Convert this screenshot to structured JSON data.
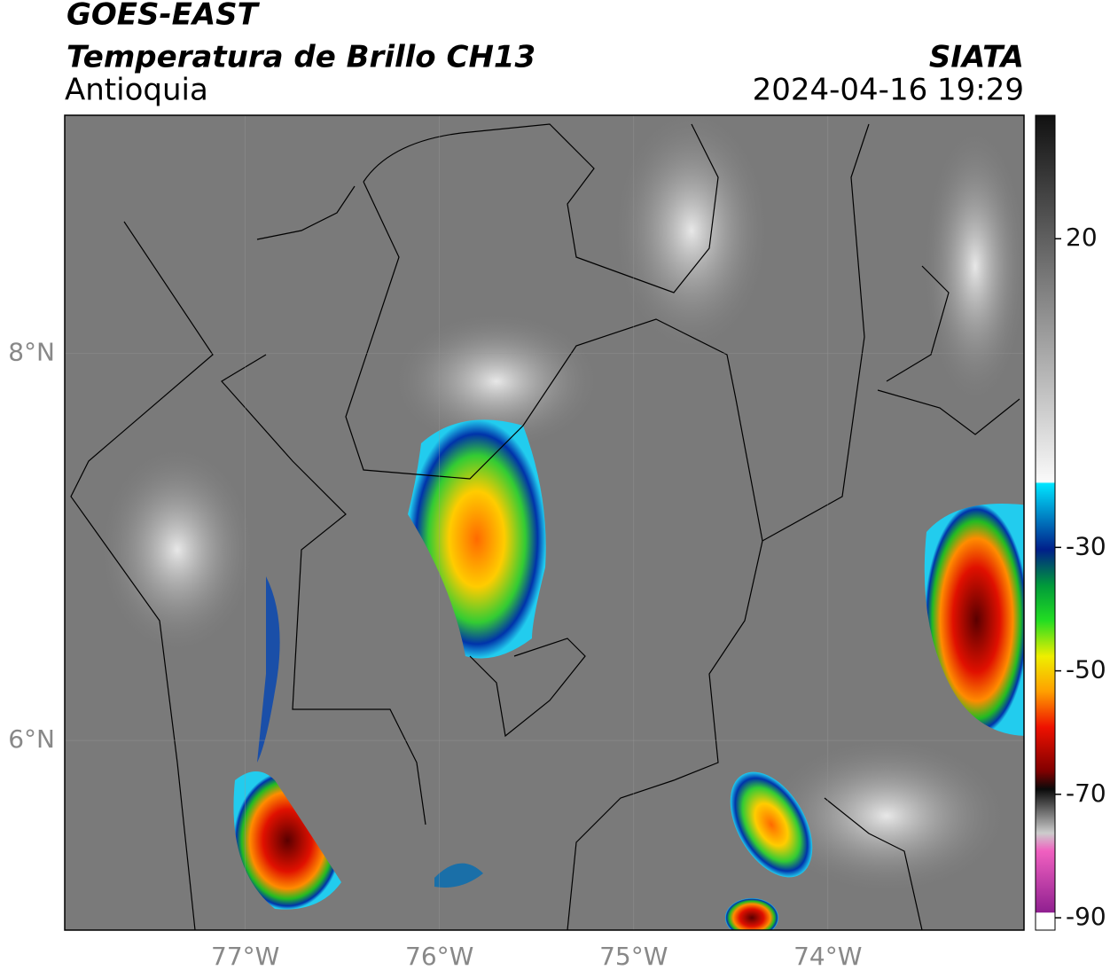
{
  "header": {
    "title": "GOES-EAST",
    "subtitle": "Temperatura de Brillo CH13",
    "region": "Antioquia",
    "source": "SIATA",
    "datetime": "2024-04-16 19:29"
  },
  "map": {
    "lonlim": [
      -77.93,
      -72.99
    ],
    "latlim": [
      5.02,
      9.23
    ],
    "lonticks": [
      {
        "value": -77,
        "label": "77°W"
      },
      {
        "value": -76,
        "label": "76°W"
      },
      {
        "value": -75,
        "label": "75°W"
      },
      {
        "value": -74,
        "label": "74°W"
      }
    ],
    "latticks": [
      {
        "value": 8,
        "label": "8°N"
      },
      {
        "value": 6,
        "label": "6°N"
      }
    ]
  },
  "colorbar": {
    "lim": [
      -92,
      40
    ],
    "ticks": [
      20,
      -30,
      -50,
      -70,
      -90
    ]
  }
}
